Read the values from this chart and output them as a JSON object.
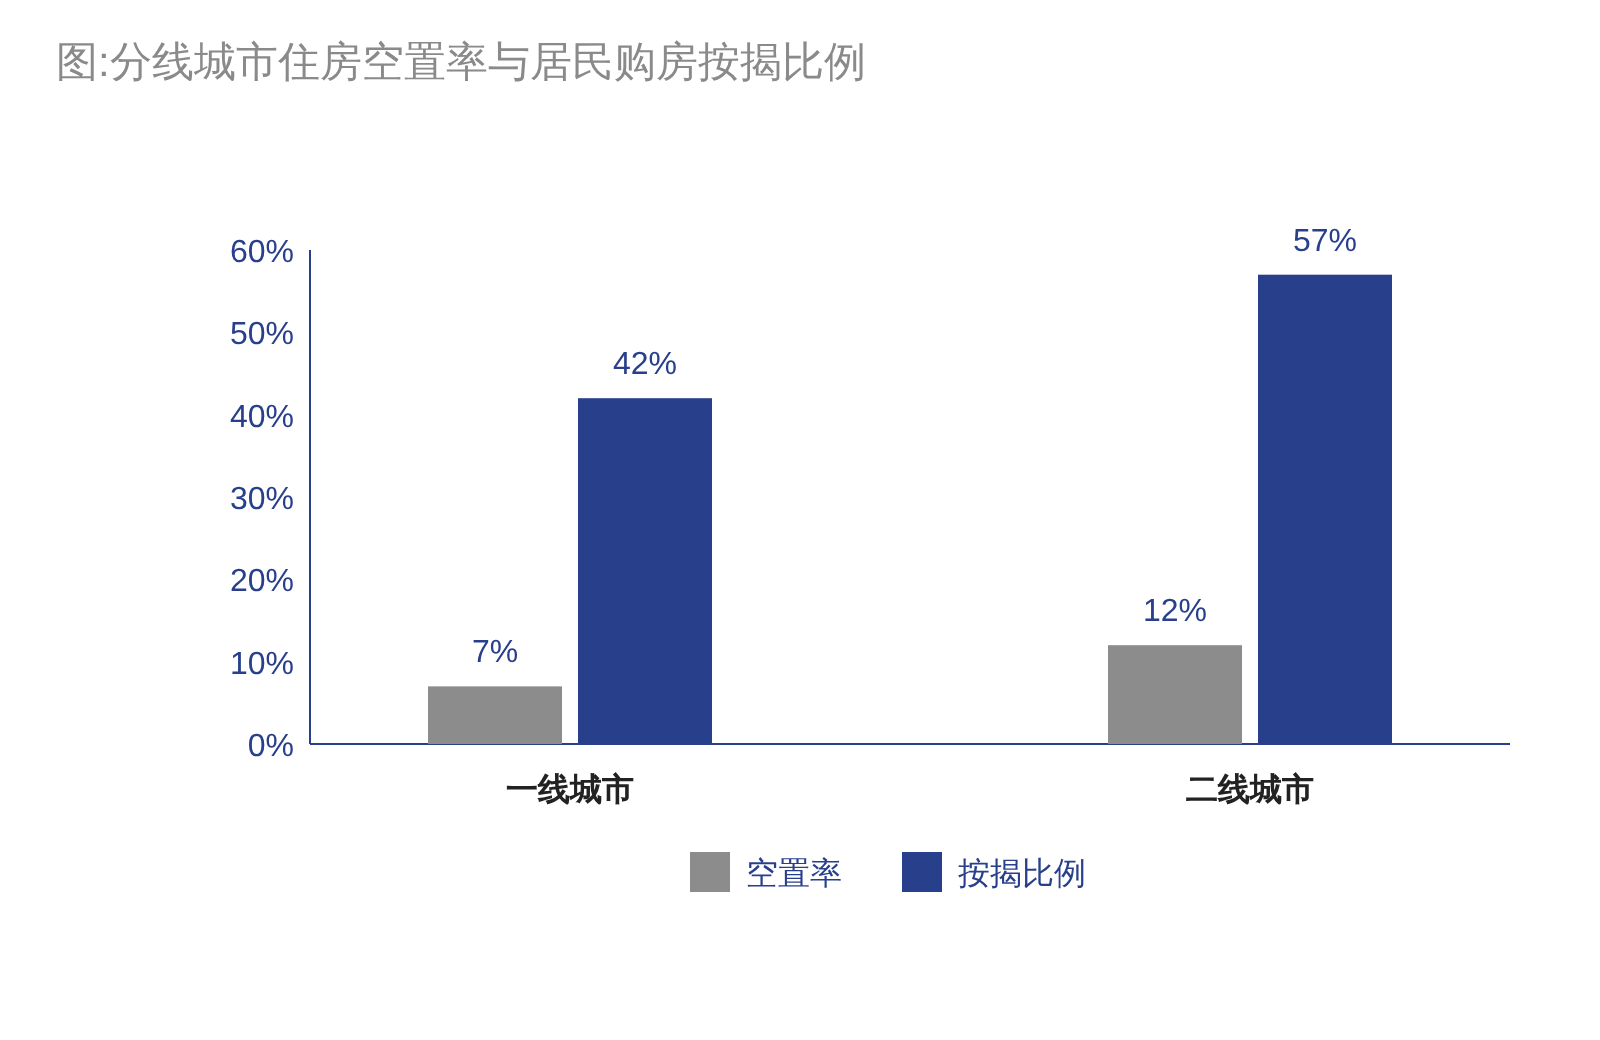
{
  "chart_data": {
    "type": "bar",
    "title": "图:分线城市住房空置率与居民购房按揭比例",
    "categories": [
      "一线城市",
      "二线城市"
    ],
    "series": [
      {
        "name": "空置率",
        "color": "#8c8c8c",
        "values": [
          7,
          12
        ],
        "value_labels": [
          "7%",
          "12%"
        ]
      },
      {
        "name": "按揭比例",
        "color": "#283f8c",
        "values": [
          42,
          57
        ],
        "value_labels": [
          "42%",
          "57%"
        ]
      }
    ],
    "ylim": [
      0,
      60
    ],
    "yticks": [
      {
        "value": 0,
        "label": "0%"
      },
      {
        "value": 10,
        "label": "10%"
      },
      {
        "value": 20,
        "label": "20%"
      },
      {
        "value": 30,
        "label": "30%"
      },
      {
        "value": 40,
        "label": "40%"
      },
      {
        "value": 50,
        "label": "50%"
      },
      {
        "value": 60,
        "label": "60%"
      }
    ],
    "grid": false,
    "legend": "bottom"
  }
}
